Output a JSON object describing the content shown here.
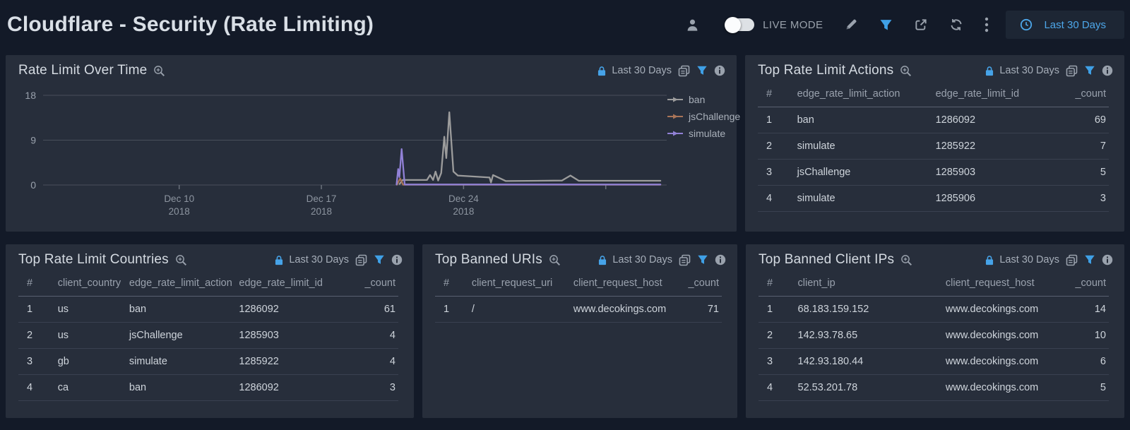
{
  "app": {
    "background": "#131a28",
    "panel_background": "#272e3b",
    "accent_blue": "#46a3e8"
  },
  "header": {
    "title": "Cloudflare - Security (Rate Limiting)",
    "live_mode_label": "LIVE MODE",
    "live_mode_enabled": false,
    "time_range_button": "Last 30 Days",
    "icons": [
      "user-icon",
      "live-mode-toggle",
      "edit-pencil-icon",
      "filter-funnel-icon",
      "share-icon",
      "refresh-icon",
      "more-kebab-icon",
      "clock-icon"
    ]
  },
  "panel_common": {
    "time_range": "Last 30 Days",
    "icons": [
      "zoom-in-icon",
      "lock-icon",
      "copy-icon",
      "filter-funnel-icon",
      "info-icon"
    ]
  },
  "panels": {
    "rate_limit_over_time": {
      "title": "Rate Limit Over Time",
      "time_range": "Last 30 Days"
    },
    "top_rate_limit_actions": {
      "title": "Top Rate Limit Actions",
      "time_range": "Last 30 Days",
      "columns": [
        "#",
        "edge_rate_limit_action",
        "edge_rate_limit_id",
        "_count"
      ],
      "rows": [
        [
          "1",
          "ban",
          "1286092",
          "69"
        ],
        [
          "2",
          "simulate",
          "1285922",
          "7"
        ],
        [
          "3",
          "jsChallenge",
          "1285903",
          "5"
        ],
        [
          "4",
          "simulate",
          "1285906",
          "3"
        ]
      ]
    },
    "top_rate_limit_countries": {
      "title": "Top Rate Limit Countries",
      "time_range": "Last 30 Days",
      "columns": [
        "#",
        "client_country",
        "edge_rate_limit_action",
        "edge_rate_limit_id",
        "_count"
      ],
      "rows": [
        [
          "1",
          "us",
          "ban",
          "1286092",
          "61"
        ],
        [
          "2",
          "us",
          "jsChallenge",
          "1285903",
          "4"
        ],
        [
          "3",
          "gb",
          "simulate",
          "1285922",
          "4"
        ],
        [
          "4",
          "ca",
          "ban",
          "1286092",
          "3"
        ]
      ]
    },
    "top_banned_uris": {
      "title": "Top Banned URIs",
      "time_range": "Last 30 Days",
      "columns": [
        "#",
        "client_request_uri",
        "client_request_host",
        "_count"
      ],
      "rows": [
        [
          "1",
          "/",
          "www.decokings.com",
          "71"
        ]
      ]
    },
    "top_banned_client_ips": {
      "title": "Top Banned Client IPs",
      "time_range": "Last 30 Days",
      "columns": [
        "#",
        "client_ip",
        "client_request_host",
        "_count"
      ],
      "rows": [
        [
          "1",
          "68.183.159.152",
          "www.decokings.com",
          "14"
        ],
        [
          "2",
          "142.93.78.65",
          "www.decokings.com",
          "10"
        ],
        [
          "3",
          "142.93.180.44",
          "www.decokings.com",
          "6"
        ],
        [
          "4",
          "52.53.201.78",
          "www.decokings.com",
          "5"
        ]
      ]
    }
  },
  "chart_data": {
    "type": "line",
    "title": "Rate Limit Over Time",
    "xlabel": "",
    "ylabel": "",
    "x_unit": "day of December 2018 (continues into January)",
    "x_domain": [
      3.3,
      34.0
    ],
    "y_domain": [
      0,
      18
    ],
    "y_ticks": [
      0,
      9,
      18
    ],
    "x_ticks": [
      {
        "x": 10,
        "label": "Dec 10",
        "sublabel": "2018"
      },
      {
        "x": 17,
        "label": "Dec 17",
        "sublabel": "2018"
      },
      {
        "x": 24,
        "label": "Dec 24",
        "sublabel": "2018"
      },
      {
        "x": 31,
        "label": "",
        "sublabel": ""
      }
    ],
    "grid": true,
    "legend_position": "right",
    "grid_color": "#484f5b",
    "series": [
      {
        "name": "ban",
        "color": "#9c9c9c",
        "points": [
          [
            20.85,
            0.2
          ],
          [
            21.0,
            1.0
          ],
          [
            22.2,
            1.0
          ],
          [
            22.35,
            2.0
          ],
          [
            22.5,
            1.0
          ],
          [
            22.62,
            2.7
          ],
          [
            22.75,
            0.9
          ],
          [
            22.9,
            2.4
          ],
          [
            23.05,
            9.7
          ],
          [
            23.15,
            5.4
          ],
          [
            23.3,
            14.6
          ],
          [
            23.5,
            2.7
          ],
          [
            23.72,
            1.9
          ],
          [
            25.28,
            1.5
          ],
          [
            25.35,
            0.5
          ],
          [
            25.45,
            2.0
          ],
          [
            26.08,
            0.8
          ],
          [
            28.84,
            0.9
          ],
          [
            29.26,
            1.9
          ],
          [
            29.67,
            0.85
          ],
          [
            33.69,
            0.85
          ]
        ]
      },
      {
        "name": "jsChallenge",
        "color": "#a97458",
        "points": [
          [
            20.72,
            0.05
          ],
          [
            20.88,
            1.3
          ],
          [
            21.02,
            0.05
          ],
          [
            33.69,
            0.05
          ]
        ]
      },
      {
        "name": "simulate",
        "color": "#9181d6",
        "points": [
          [
            20.7,
            0.1
          ],
          [
            20.78,
            3.2
          ],
          [
            20.84,
            1.6
          ],
          [
            20.95,
            7.2
          ],
          [
            21.1,
            0.1
          ],
          [
            33.69,
            0.1
          ]
        ]
      }
    ]
  }
}
